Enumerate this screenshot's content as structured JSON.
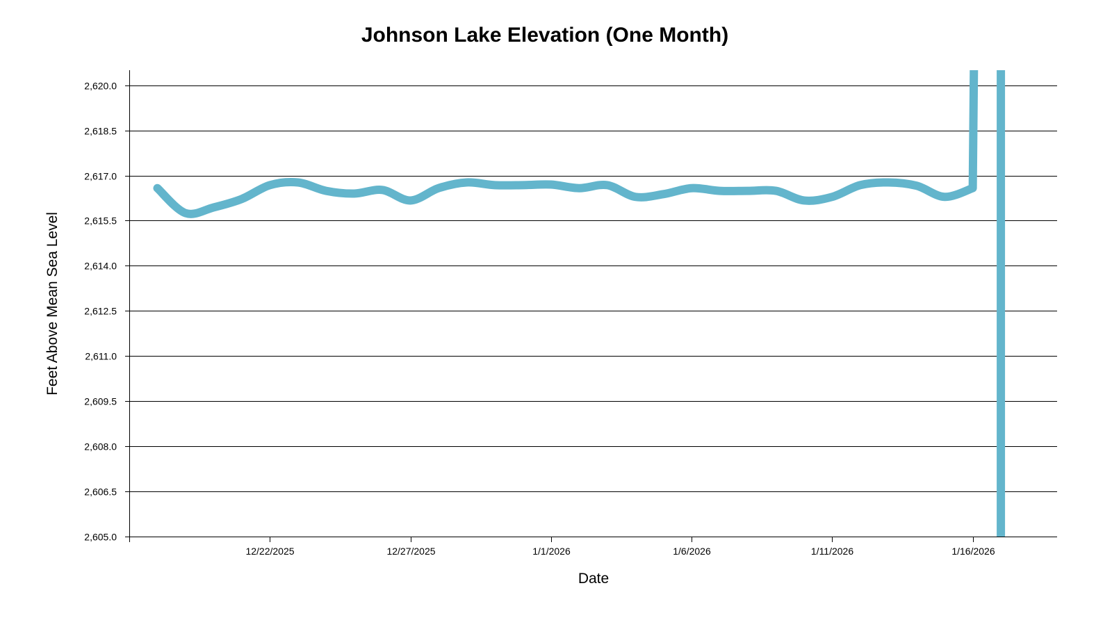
{
  "chart_data": {
    "type": "line",
    "title": "Johnson Lake Elevation (One Month)",
    "xlabel": "Date",
    "ylabel": "Feet Above Mean Sea Level",
    "ylim": [
      2605.0,
      2620.5
    ],
    "xlim_days_from_start": [
      0,
      33
    ],
    "x_start_date": "12/17/2025",
    "grid": true,
    "line_color": "#63b5cc",
    "y_ticks": [
      "2,605.0",
      "2,606.5",
      "2,608.0",
      "2,609.5",
      "2,611.0",
      "2,612.5",
      "2,614.0",
      "2,615.5",
      "2,617.0",
      "2,618.5",
      "2,620.0"
    ],
    "y_tick_values": [
      2605.0,
      2606.5,
      2608.0,
      2609.5,
      2611.0,
      2612.5,
      2614.0,
      2615.5,
      2617.0,
      2618.5,
      2620.0
    ],
    "x_ticks": [
      "12/22/2025",
      "12/27/2025",
      "1/1/2026",
      "1/6/2026",
      "1/11/2026",
      "1/16/2026"
    ],
    "x_tick_days": [
      5,
      10,
      15,
      20,
      25,
      30
    ],
    "series": [
      {
        "name": "Elevation",
        "x_days": [
          1,
          2,
          3,
          4,
          5,
          6,
          7,
          8,
          9,
          10,
          11,
          12,
          13,
          14,
          15,
          16,
          17,
          18,
          19,
          20,
          21,
          22,
          23,
          24,
          25,
          26,
          27,
          28,
          29,
          30
        ],
        "dates": [
          "12/18/2025",
          "12/19/2025",
          "12/20/2025",
          "12/21/2025",
          "12/22/2025",
          "12/23/2025",
          "12/24/2025",
          "12/25/2025",
          "12/26/2025",
          "12/27/2025",
          "12/28/2025",
          "12/29/2025",
          "12/30/2025",
          "12/31/2025",
          "1/1/2026",
          "1/2/2026",
          "1/3/2026",
          "1/4/2026",
          "1/5/2026",
          "1/6/2026",
          "1/7/2026",
          "1/8/2026",
          "1/9/2026",
          "1/10/2026",
          "1/11/2026",
          "1/12/2026",
          "1/13/2026",
          "1/14/2026",
          "1/15/2026",
          "1/16/2026"
        ],
        "values": [
          2616.58,
          2615.75,
          2615.94,
          2616.22,
          2616.68,
          2616.77,
          2616.49,
          2616.4,
          2616.52,
          2616.17,
          2616.58,
          2616.77,
          2616.68,
          2616.68,
          2616.7,
          2616.58,
          2616.68,
          2616.29,
          2616.38,
          2616.58,
          2616.49,
          2616.49,
          2616.49,
          2616.17,
          2616.29,
          2616.68,
          2616.77,
          2616.66,
          2616.29,
          2616.58
        ],
        "out_of_range": [
          {
            "x_days": 30.05,
            "direction": "above"
          },
          {
            "x_days": 31.0,
            "direction": "below"
          }
        ]
      }
    ]
  }
}
